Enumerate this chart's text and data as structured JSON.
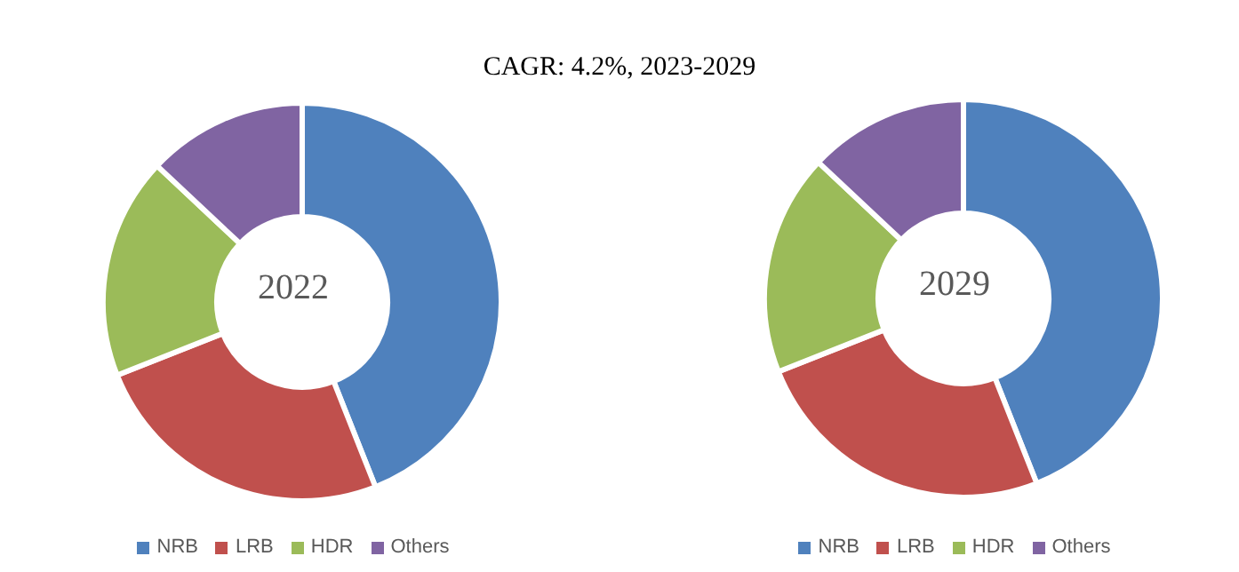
{
  "chart_data": [
    {
      "type": "donut",
      "title": "CAGR: 4.2%, 2023-2029",
      "categories": [
        "NRB",
        "LRB",
        "HDR",
        "Others"
      ],
      "values": [
        44,
        25,
        18,
        13
      ],
      "colors": [
        "#4f81bd",
        "#c0504d",
        "#9bbb59",
        "#8064a2"
      ],
      "annotations": [
        "2022"
      ],
      "legend": "bottom"
    },
    {
      "type": "donut",
      "categories": [
        "NRB",
        "LRB",
        "HDR",
        "Others"
      ],
      "values": [
        44,
        25,
        18,
        13
      ],
      "colors": [
        "#4f81bd",
        "#c0504d",
        "#9bbb59",
        "#8064a2"
      ],
      "annotations": [
        "2029"
      ],
      "legend": "bottom"
    }
  ]
}
